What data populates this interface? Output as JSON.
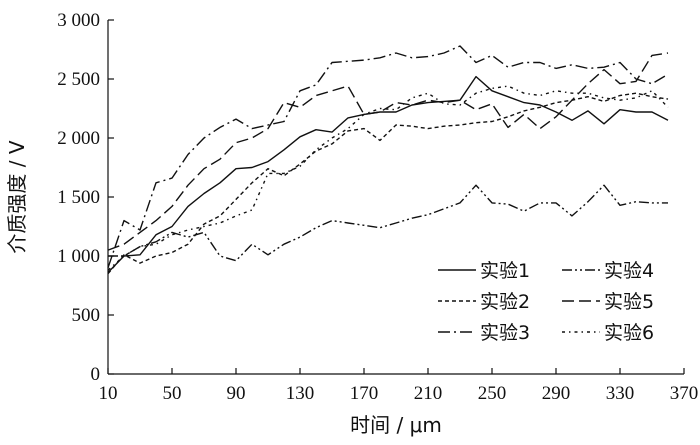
{
  "chart_data": {
    "type": "line",
    "xlabel": "时间 / μm",
    "ylabel": "介质强度 / V",
    "xlim": [
      10,
      370
    ],
    "ylim": [
      0,
      3000
    ],
    "x_ticks": [
      10,
      50,
      90,
      130,
      170,
      210,
      250,
      290,
      330,
      370
    ],
    "y_ticks": [
      0,
      500,
      1000,
      1500,
      2000,
      2500,
      3000
    ],
    "x_tick_labels": [
      "10",
      "50",
      "90",
      "130",
      "170",
      "210",
      "250",
      "290",
      "330",
      "370"
    ],
    "y_tick_labels": [
      "0",
      "500",
      "1 000",
      "1 500",
      "2 000",
      "2 500",
      "3 000"
    ],
    "grid": false,
    "legend_position": "bottom-right",
    "series": [
      {
        "name": "实验1",
        "style": "solid",
        "color": "#111111",
        "x": [
          10,
          20,
          30,
          40,
          50,
          60,
          70,
          80,
          90,
          100,
          110,
          120,
          130,
          140,
          150,
          160,
          170,
          180,
          190,
          200,
          210,
          220,
          230,
          240,
          250,
          260,
          270,
          280,
          290,
          300,
          310,
          320,
          330,
          340,
          350,
          360
        ],
        "values": [
          860,
          1000,
          1010,
          1180,
          1250,
          1420,
          1530,
          1620,
          1740,
          1750,
          1800,
          1900,
          2010,
          2070,
          2050,
          2170,
          2200,
          2220,
          2220,
          2280,
          2300,
          2310,
          2320,
          2520,
          2400,
          2350,
          2300,
          2280,
          2220,
          2150,
          2230,
          2120,
          2240,
          2220,
          2220,
          2150
        ]
      },
      {
        "name": "实验2",
        "style": "short-dash",
        "color": "#111111",
        "x": [
          10,
          20,
          30,
          40,
          50,
          60,
          70,
          80,
          90,
          100,
          110,
          120,
          130,
          140,
          150,
          160,
          170,
          180,
          190,
          200,
          210,
          220,
          230,
          240,
          250,
          260,
          270,
          280,
          290,
          300,
          310,
          320,
          330,
          340,
          350,
          360
        ],
        "values": [
          850,
          1010,
          940,
          1000,
          1030,
          1100,
          1270,
          1340,
          1480,
          1620,
          1740,
          1680,
          1780,
          1890,
          1950,
          2060,
          2080,
          1980,
          2110,
          2100,
          2080,
          2100,
          2110,
          2130,
          2140,
          2180,
          2230,
          2260,
          2300,
          2320,
          2350,
          2310,
          2360,
          2380,
          2350,
          2330
        ]
      },
      {
        "name": "实验3",
        "style": "dash-dot",
        "color": "#111111",
        "x": [
          10,
          20,
          30,
          40,
          50,
          60,
          70,
          80,
          90,
          100,
          110,
          120,
          130,
          140,
          150,
          160,
          170,
          180,
          190,
          200,
          210,
          220,
          230,
          240,
          250,
          260,
          270,
          280,
          290,
          300,
          310,
          320,
          330,
          340,
          350,
          360
        ],
        "values": [
          900,
          1300,
          1220,
          1620,
          1660,
          1860,
          2000,
          2090,
          2160,
          2080,
          2110,
          2140,
          2400,
          2450,
          2640,
          2650,
          2660,
          2680,
          2720,
          2680,
          2690,
          2720,
          2780,
          2640,
          2700,
          2600,
          2640,
          2640,
          2590,
          2620,
          2590,
          2600,
          2640,
          2500,
          2460,
          2540
        ]
      },
      {
        "name": "实验4",
        "style": "dash-dot-dot",
        "color": "#111111",
        "x": [
          10,
          20,
          30,
          40,
          50,
          60,
          70,
          80,
          90,
          100,
          110,
          120,
          130,
          140,
          150,
          160,
          170,
          180,
          190,
          200,
          210,
          220,
          230,
          240,
          250,
          260,
          270,
          280,
          290,
          300,
          310,
          320,
          330,
          340,
          350,
          360
        ],
        "values": [
          1000,
          1000,
          1080,
          1120,
          1200,
          1160,
          1200,
          1000,
          960,
          1100,
          1010,
          1100,
          1160,
          1240,
          1300,
          1280,
          1260,
          1240,
          1280,
          1320,
          1350,
          1400,
          1450,
          1600,
          1450,
          1440,
          1380,
          1450,
          1450,
          1340,
          1460,
          1600,
          1430,
          1460,
          1450,
          1450
        ]
      },
      {
        "name": "实验5",
        "style": "long-dash",
        "color": "#111111",
        "x": [
          10,
          20,
          30,
          40,
          50,
          60,
          70,
          80,
          90,
          100,
          110,
          120,
          130,
          140,
          150,
          160,
          170,
          180,
          190,
          200,
          210,
          220,
          230,
          240,
          250,
          260,
          270,
          280,
          290,
          300,
          310,
          320,
          330,
          340,
          350,
          360
        ],
        "values": [
          1050,
          1100,
          1200,
          1300,
          1420,
          1600,
          1740,
          1820,
          1960,
          2000,
          2080,
          2300,
          2260,
          2360,
          2400,
          2440,
          2200,
          2220,
          2300,
          2280,
          2320,
          2300,
          2320,
          2240,
          2290,
          2090,
          2200,
          2080,
          2180,
          2320,
          2460,
          2580,
          2460,
          2480,
          2700,
          2720
        ]
      },
      {
        "name": "实验6",
        "style": "dotted-dash",
        "color": "#111111",
        "x": [
          10,
          20,
          30,
          40,
          50,
          60,
          70,
          80,
          90,
          100,
          110,
          120,
          130,
          140,
          150,
          160,
          170,
          180,
          190,
          200,
          210,
          220,
          230,
          240,
          250,
          260,
          270,
          280,
          290,
          300,
          310,
          320,
          330,
          340,
          350,
          360
        ],
        "values": [
          880,
          1000,
          1080,
          1100,
          1180,
          1220,
          1250,
          1280,
          1340,
          1390,
          1700,
          1700,
          1760,
          1900,
          2000,
          2080,
          2200,
          2250,
          2240,
          2340,
          2380,
          2290,
          2280,
          2380,
          2420,
          2440,
          2380,
          2360,
          2400,
          2380,
          2380,
          2340,
          2320,
          2340,
          2400,
          2260
        ]
      }
    ]
  }
}
